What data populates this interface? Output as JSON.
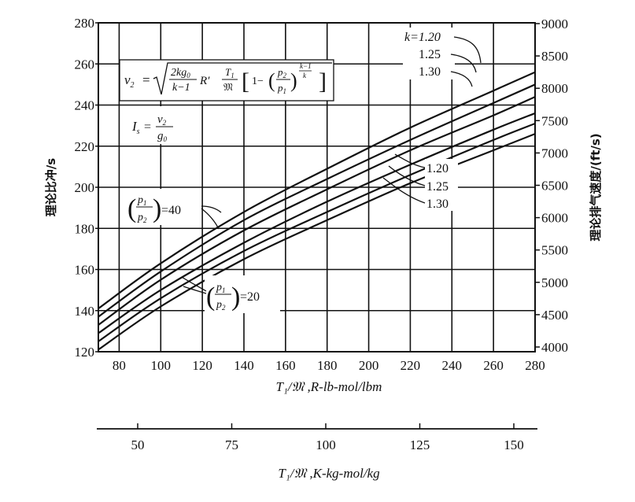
{
  "chart_data": {
    "type": "line",
    "x_axis": {
      "label": "T₁/𝔐 ,R-lb-mol/lbm",
      "range": [
        70,
        280
      ],
      "ticks": [
        80,
        100,
        120,
        140,
        160,
        180,
        200,
        220,
        240,
        260,
        280
      ]
    },
    "x_axis_secondary": {
      "label": "T₁/𝔐 ,K-kg-mol/kg",
      "ticks": [
        50,
        75,
        100,
        125,
        150
      ]
    },
    "y_axis_left": {
      "label": "理论比冲/s",
      "range": [
        120,
        280
      ],
      "ticks": [
        120,
        140,
        160,
        180,
        200,
        220,
        240,
        260,
        280
      ]
    },
    "y_axis_right": {
      "label": "理论排气速度/(ft/s)",
      "ticks": [
        4000,
        4500,
        5000,
        5500,
        6000,
        6500,
        7000,
        7500,
        8000,
        8500,
        9000
      ]
    },
    "grid": true,
    "series": [
      {
        "pressure_ratio": 40,
        "k": 1.2,
        "x": [
          70,
          100,
          140,
          180,
          220,
          260,
          280
        ],
        "y": [
          141,
          163,
          188,
          209,
          229,
          247,
          256
        ]
      },
      {
        "pressure_ratio": 40,
        "k": 1.25,
        "x": [
          70,
          100,
          140,
          180,
          220,
          260,
          280
        ],
        "y": [
          137,
          159,
          184,
          204,
          223,
          241,
          250
        ]
      },
      {
        "pressure_ratio": 40,
        "k": 1.3,
        "x": [
          70,
          100,
          140,
          180,
          220,
          260,
          280
        ],
        "y": [
          133,
          155,
          179,
          199,
          218,
          235,
          244
        ]
      },
      {
        "pressure_ratio": 20,
        "k": 1.2,
        "x": [
          70,
          100,
          140,
          180,
          220,
          260,
          280
        ],
        "y": [
          129,
          150,
          173,
          193,
          211,
          228,
          236
        ]
      },
      {
        "pressure_ratio": 20,
        "k": 1.25,
        "x": [
          70,
          100,
          140,
          180,
          220,
          260,
          280
        ],
        "y": [
          125,
          146,
          169,
          188,
          206,
          223,
          231
        ]
      },
      {
        "pressure_ratio": 20,
        "k": 1.3,
        "x": [
          70,
          100,
          140,
          180,
          220,
          260,
          280
        ],
        "y": [
          121,
          142,
          165,
          184,
          202,
          218,
          226
        ]
      }
    ],
    "annotations": {
      "k_labels_top": [
        "k=1.20",
        "1.25",
        "1.30"
      ],
      "k_labels_mid": [
        "1.20",
        "1.25",
        "1.30"
      ],
      "ratio_40": "=40",
      "ratio_20": "=20",
      "ratio_fraction_num": "p",
      "ratio_fraction_num_sub": "1",
      "ratio_fraction_den": "p",
      "ratio_fraction_den_sub": "2",
      "isp_formula": "I",
      "isp_formula_sub": "s",
      "isp_formula_num": "v",
      "isp_formula_num_sub": "2",
      "isp_formula_den": "g",
      "isp_formula_den_sub": "0",
      "v2_formula_lhs": "v",
      "v2_formula_lhs_sub": "2",
      "v2_formula_num": "2kg",
      "v2_formula_num_sub": "0",
      "v2_formula_den": "k−1",
      "v2_formula_r": "R′",
      "v2_formula_t_num": "T",
      "v2_formula_t_num_sub": "1",
      "v2_formula_t_den": "𝔐",
      "v2_formula_one_minus": "1−",
      "v2_formula_exp_num": "k−1",
      "v2_formula_exp_den": "k"
    }
  }
}
